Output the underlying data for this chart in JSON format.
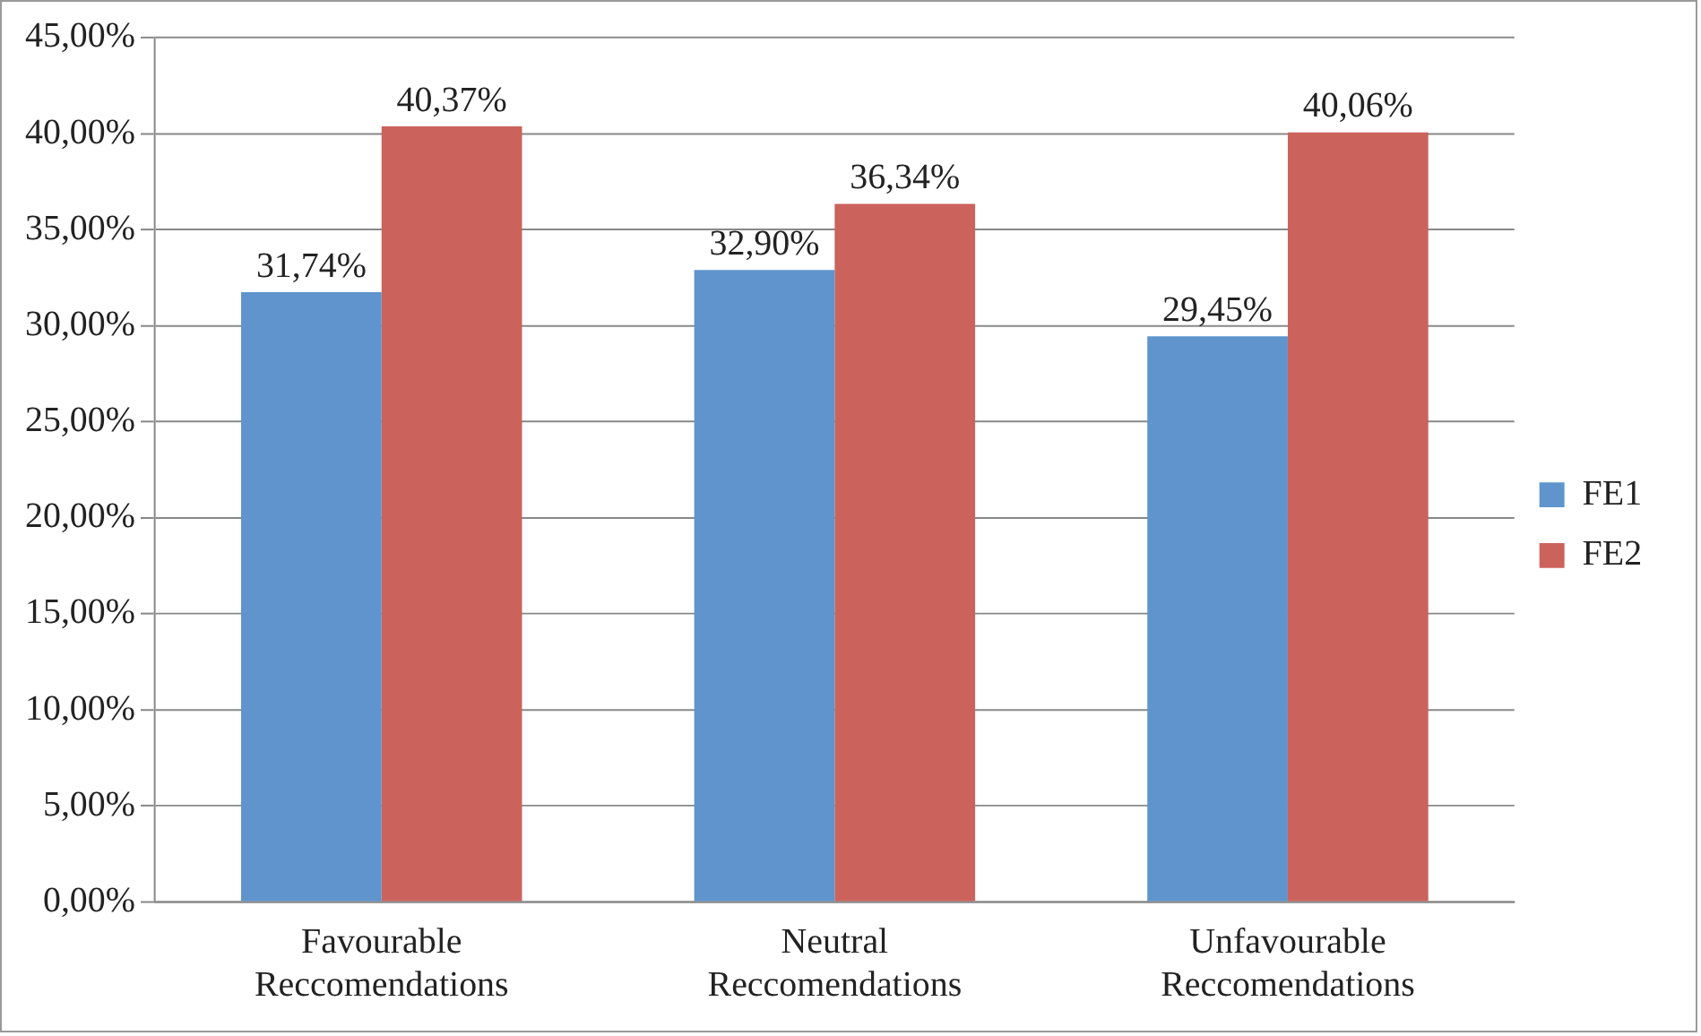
{
  "chart_data": {
    "type": "bar",
    "categories": [
      "Favourable Reccomendations",
      "Neutral Reccomendations",
      "Unfavourable Reccomendations"
    ],
    "series": [
      {
        "name": "FE1",
        "color": "#5f94cd",
        "values": [
          31.74,
          32.9,
          29.45
        ],
        "value_labels": [
          "31,74%",
          "32,90%",
          "29,45%"
        ]
      },
      {
        "name": "FE2",
        "color": "#cc625c",
        "values": [
          40.37,
          36.34,
          40.06
        ],
        "value_labels": [
          "40,37%",
          "36,34%",
          "40,06%"
        ]
      }
    ],
    "ylim": [
      0,
      45
    ],
    "yticks": [
      {
        "value": 0,
        "label": "0,00%"
      },
      {
        "value": 5,
        "label": "5,00%"
      },
      {
        "value": 10,
        "label": "10,00%"
      },
      {
        "value": 15,
        "label": "15,00%"
      },
      {
        "value": 20,
        "label": "20,00%"
      },
      {
        "value": 25,
        "label": "25,00%"
      },
      {
        "value": 30,
        "label": "30,00%"
      },
      {
        "value": 35,
        "label": "35,00%"
      },
      {
        "value": 40,
        "label": "40,00%"
      },
      {
        "value": 45,
        "label": "45,00%"
      }
    ],
    "grid": "y",
    "legend": "right"
  }
}
